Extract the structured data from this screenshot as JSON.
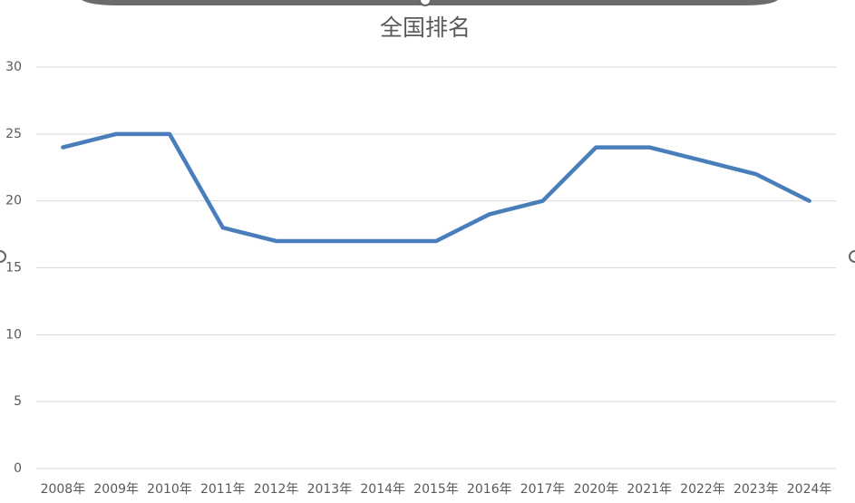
{
  "chart_data": {
    "type": "line",
    "title": "全国排名",
    "categories": [
      "2008年",
      "2009年",
      "2010年",
      "2011年",
      "2012年",
      "2013年",
      "2014年",
      "2015年",
      "2016年",
      "2017年",
      "2020年",
      "2021年",
      "2022年",
      "2023年",
      "2024年"
    ],
    "values": [
      24,
      25,
      25,
      18,
      17,
      17,
      17,
      17,
      19,
      20,
      24,
      24,
      23,
      22,
      20
    ],
    "color": "#4a7ebb",
    "ylim": [
      0,
      30
    ],
    "yticks": [
      0,
      5,
      10,
      15,
      20,
      25,
      30
    ],
    "grid": true
  }
}
